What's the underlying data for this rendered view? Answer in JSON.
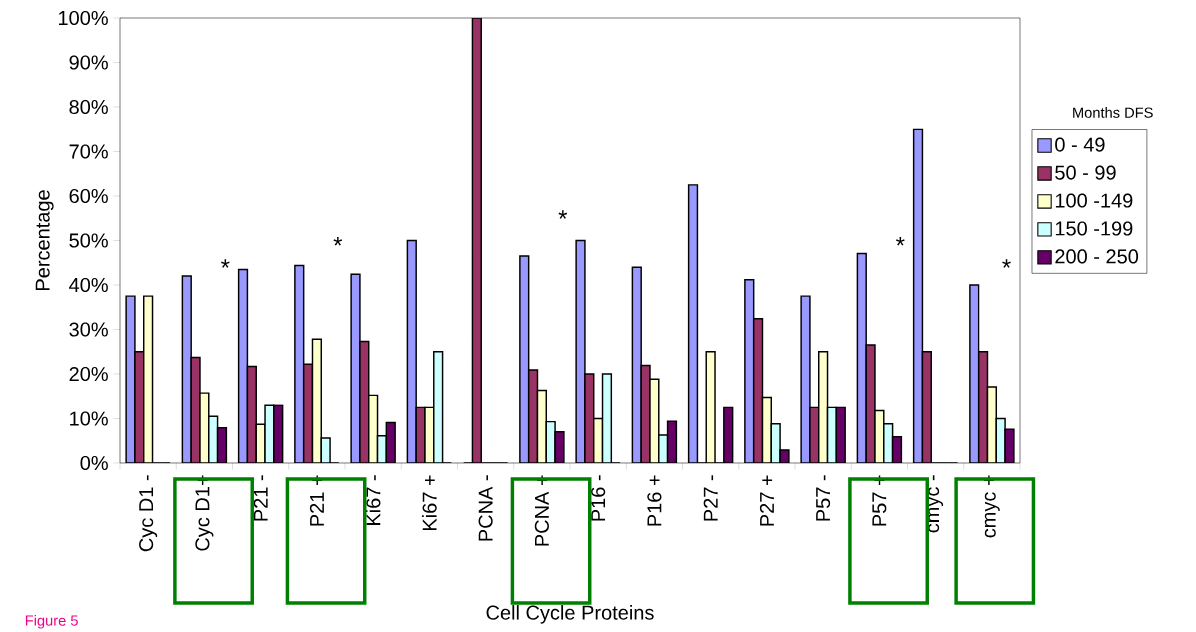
{
  "chart_data": {
    "type": "bar",
    "xlabel": "Cell Cycle Proteins",
    "ylabel": "Percentage",
    "legend_title": "Months DFS",
    "legend": "right",
    "categories": [
      "Cyc D1 -",
      "Cyc D1+",
      "P21 -",
      "P21 +",
      "Ki67 -",
      "Ki67 +",
      "PCNA -",
      "PCNA +",
      "P16 -",
      "P16 +",
      "P27 -",
      "P27 +",
      "P57 -",
      "P57 +",
      "cmyc -",
      "cmyc +"
    ],
    "series": [
      {
        "name": "0 - 49",
        "color": "#9999ff",
        "values": [
          37.5,
          42,
          43.5,
          44.4,
          42.4,
          50,
          0,
          46.5,
          50,
          44,
          62.5,
          41.2,
          37.5,
          47.1,
          75,
          40
        ]
      },
      {
        "name": "50 - 99",
        "color": "#993366",
        "values": [
          25,
          23.7,
          21.7,
          22.2,
          27.3,
          12.5,
          100,
          20.9,
          20,
          21.9,
          0,
          32.4,
          12.5,
          26.5,
          25,
          25
        ]
      },
      {
        "name": "100 -149",
        "color": "#ffffcc",
        "values": [
          37.5,
          15.7,
          8.7,
          27.8,
          15.2,
          12.5,
          0,
          16.3,
          10,
          18.8,
          25,
          14.7,
          25,
          11.8,
          0,
          17.1
        ]
      },
      {
        "name": "150 -199",
        "color": "#ccffff",
        "values": [
          0,
          10.5,
          13,
          5.6,
          6.1,
          25,
          0,
          9.3,
          20,
          6.3,
          0,
          8.8,
          12.5,
          8.8,
          0,
          10
        ]
      },
      {
        "name": "200 - 250",
        "color": "#660066",
        "values": [
          0,
          7.9,
          13,
          0,
          9.1,
          0,
          0,
          7,
          0,
          9.4,
          12.5,
          2.9,
          12.5,
          5.9,
          0,
          7.6
        ]
      }
    ],
    "ylim": [
      0,
      100
    ],
    "yticks": [
      {
        "value": 0,
        "label": "0%"
      },
      {
        "value": 10,
        "label": "10%"
      },
      {
        "value": 20,
        "label": "20%"
      },
      {
        "value": 30,
        "label": "30%"
      },
      {
        "value": 40,
        "label": "40%"
      },
      {
        "value": 50,
        "label": "50%"
      },
      {
        "value": 60,
        "label": "60%"
      },
      {
        "value": 70,
        "label": "70%"
      },
      {
        "value": 80,
        "label": "80%"
      },
      {
        "value": 90,
        "label": "90%"
      },
      {
        "value": 100,
        "label": "100%"
      }
    ],
    "annotations": [
      "*",
      "*",
      "*",
      "*",
      "*",
      "Figure 5"
    ]
  }
}
